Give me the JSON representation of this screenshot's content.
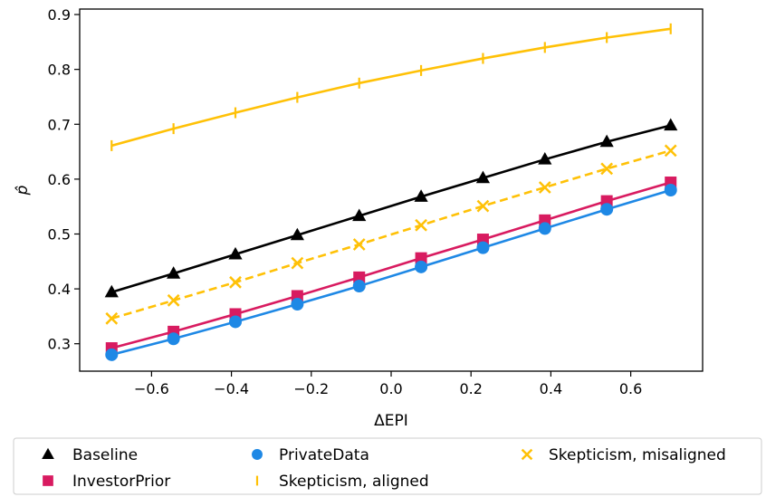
{
  "chart_data": {
    "type": "line",
    "title": "",
    "xlabel": "ΔEPI",
    "ylabel": "p̂",
    "xlim": [
      -0.78,
      0.78
    ],
    "ylim": [
      0.25,
      0.91
    ],
    "xticks": [
      -0.6,
      -0.4,
      -0.2,
      0.0,
      0.2,
      0.4,
      0.6
    ],
    "xtick_labels": [
      "−0.6",
      "−0.4",
      "−0.2",
      "0.0",
      "0.2",
      "0.4",
      "0.6"
    ],
    "yticks": [
      0.3,
      0.4,
      0.5,
      0.6,
      0.7,
      0.8,
      0.9
    ],
    "ytick_labels": [
      "0.3",
      "0.4",
      "0.5",
      "0.6",
      "0.7",
      "0.8",
      "0.9"
    ],
    "x": [
      -0.7,
      -0.545,
      -0.39,
      -0.235,
      -0.08,
      0.075,
      0.23,
      0.385,
      0.54,
      0.7
    ],
    "grid": false,
    "legend_placement": "below",
    "series": [
      {
        "name": "Baseline",
        "color": "#000000",
        "marker": "triangle",
        "linestyle": "solid",
        "values": [
          0.394,
          0.428,
          0.463,
          0.498,
          0.533,
          0.568,
          0.602,
          0.636,
          0.668,
          0.698
        ]
      },
      {
        "name": "InvestorPrior",
        "color": "#d81b60",
        "marker": "square",
        "linestyle": "solid",
        "values": [
          0.292,
          0.322,
          0.354,
          0.387,
          0.421,
          0.456,
          0.49,
          0.525,
          0.56,
          0.594
        ]
      },
      {
        "name": "PrivateData",
        "color": "#1e88e5",
        "marker": "circle",
        "linestyle": "solid",
        "values": [
          0.28,
          0.309,
          0.34,
          0.372,
          0.405,
          0.44,
          0.475,
          0.51,
          0.545,
          0.58
        ]
      },
      {
        "name": "Skepticism, aligned",
        "color": "#ffc107",
        "marker": "vline",
        "linestyle": "solid",
        "values": [
          0.661,
          0.692,
          0.721,
          0.749,
          0.775,
          0.798,
          0.82,
          0.84,
          0.858,
          0.874
        ]
      },
      {
        "name": "Skepticism, misaligned",
        "color": "#ffc107",
        "marker": "x",
        "linestyle": "dashed",
        "values": [
          0.346,
          0.379,
          0.412,
          0.447,
          0.481,
          0.516,
          0.551,
          0.585,
          0.619,
          0.652
        ]
      }
    ]
  }
}
